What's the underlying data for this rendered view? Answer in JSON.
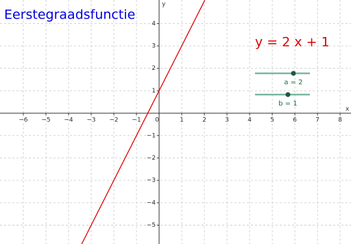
{
  "chart_data": {
    "type": "line",
    "title": "Eerstegraadsfunctie",
    "annotation": "y = 2 x + 1",
    "x_label": "x",
    "y_label": "y",
    "x": [
      -3.42,
      2.02
    ],
    "values": [
      -5.84,
      5.04
    ],
    "color": "#e00000",
    "xlim": [
      -7.03,
      8.48
    ],
    "ylim": [
      -5.84,
      5.05
    ],
    "xticks": [
      {
        "value": -6,
        "label": "−6"
      },
      {
        "value": -5,
        "label": "−5"
      },
      {
        "value": -4,
        "label": "−4"
      },
      {
        "value": -3,
        "label": "−3"
      },
      {
        "value": -2,
        "label": "−2"
      },
      {
        "value": -1,
        "label": "−1"
      },
      0,
      1,
      2,
      3,
      4,
      5,
      6,
      7,
      8
    ],
    "yticks": [
      {
        "value": -5,
        "label": "−5"
      },
      {
        "value": -4,
        "label": "−4"
      },
      {
        "value": -3,
        "label": "−3"
      },
      {
        "value": -2,
        "label": "−2"
      },
      {
        "value": -1,
        "label": "−1"
      },
      1,
      2,
      3,
      4
    ],
    "grid": true,
    "sliders": [
      {
        "label": "a = 2",
        "value": 2,
        "range": [
          -5,
          5
        ]
      },
      {
        "label": "b = 1",
        "value": 1,
        "range": [
          -5,
          5
        ]
      }
    ]
  }
}
